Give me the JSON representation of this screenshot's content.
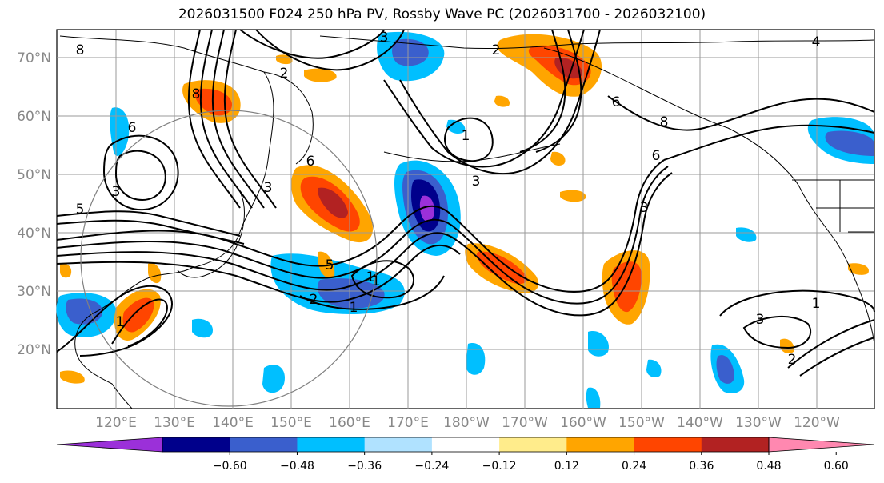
{
  "title": "2026031500 F024 250 hPa PV, Rossby Wave PC (2026031700 - 2026032100)",
  "lat_labels": [
    "70°N",
    "60°N",
    "50°N",
    "40°N",
    "30°N",
    "20°N"
  ],
  "lon_labels": [
    "120°E",
    "130°E",
    "140°E",
    "150°E",
    "160°E",
    "170°E",
    "180°W",
    "170°W",
    "160°W",
    "150°W",
    "140°W",
    "130°W",
    "120°W"
  ],
  "colorbar": {
    "tick_labels": [
      "−0.60",
      "−0.48",
      "−0.36",
      "−0.24",
      "−0.12",
      "0.12",
      "0.24",
      "0.36",
      "0.48",
      "0.60"
    ],
    "colors": [
      "#9b30d9",
      "#00008b",
      "#3a5fcd",
      "#00bfff",
      "#b0e2ff",
      "#ffffff",
      "#ffec8b",
      "#ffa500",
      "#ff4500",
      "#b22222",
      "#ff88b0"
    ]
  },
  "contour_labels": [
    "8",
    "2",
    "1",
    "5",
    "6",
    "3",
    "8",
    "5",
    "2",
    "1",
    "1",
    "2",
    "3",
    "6",
    "2",
    "3",
    "1",
    "6",
    "8",
    "6",
    "3",
    "4",
    "3",
    "1",
    "3",
    "1"
  ],
  "map_colors": {
    "land_border": "#000000",
    "grid": "#9a9a9a",
    "circle": "#808080"
  }
}
